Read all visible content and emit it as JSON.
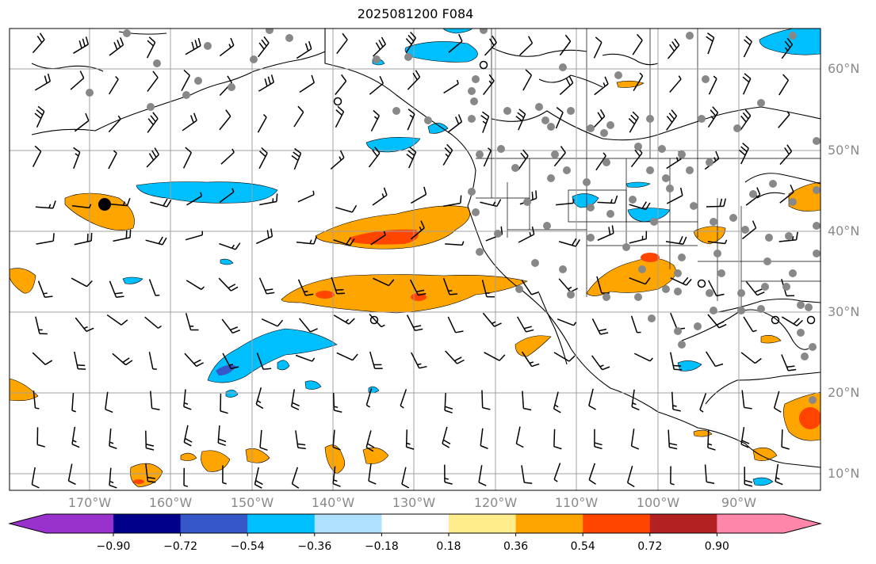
{
  "title": "2025081200 F084",
  "lat_labels": [
    "60°N",
    "50°N",
    "40°N",
    "30°N",
    "20°N",
    "10°N"
  ],
  "lon_labels": [
    "170°W",
    "160°W",
    "150°W",
    "140°W",
    "130°W",
    "120°W",
    "110°W",
    "100°W",
    "90°W"
  ],
  "colorbar": {
    "ticks": [
      "−0.90",
      "−0.72",
      "−0.54",
      "−0.36",
      "−0.18",
      "0.18",
      "0.36",
      "0.54",
      "0.72",
      "0.90"
    ],
    "colors": [
      "#9932cc",
      "#00008b",
      "#3557c8",
      "#00bfff",
      "#aee0ff",
      "#ffffff",
      "#ffec8b",
      "#ffa500",
      "#ff4500",
      "#b22222",
      "#ff88aa"
    ]
  },
  "colors": {
    "orange": "#ffa500",
    "red": "#ff4500",
    "blue": "#00bfff",
    "dark_blue": "#3557c8",
    "dots": "#888888",
    "grid": "#a0a0a0"
  }
}
